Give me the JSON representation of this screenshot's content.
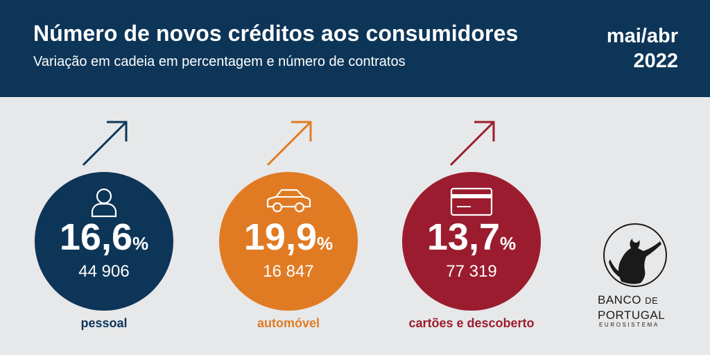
{
  "header": {
    "title": "Número de novos créditos aos consumidores",
    "subtitle": "Variação em cadeia em percentagem e número de contratos",
    "period_line1": "mai/abr",
    "period_line2": "2022"
  },
  "items": [
    {
      "category": "pessoal",
      "percent": "16,6",
      "unit": "%",
      "contracts": "44 906",
      "color": "#0d3558",
      "icon": "person-icon",
      "trend": "up"
    },
    {
      "category": "automóvel",
      "percent": "19,9",
      "unit": "%",
      "contracts": "16 847",
      "color": "#e07b24",
      "icon": "car-icon",
      "trend": "up"
    },
    {
      "category": "cartões e descoberto",
      "percent": "13,7",
      "unit": "%",
      "contracts": "77 319",
      "color": "#9b1c2e",
      "icon": "credit-card-icon",
      "trend": "up"
    }
  ],
  "logo": {
    "line1": "BANCO",
    "line1_small": "DE",
    "line2": "PORTUGAL",
    "line3": "EUROSISTEMA"
  }
}
